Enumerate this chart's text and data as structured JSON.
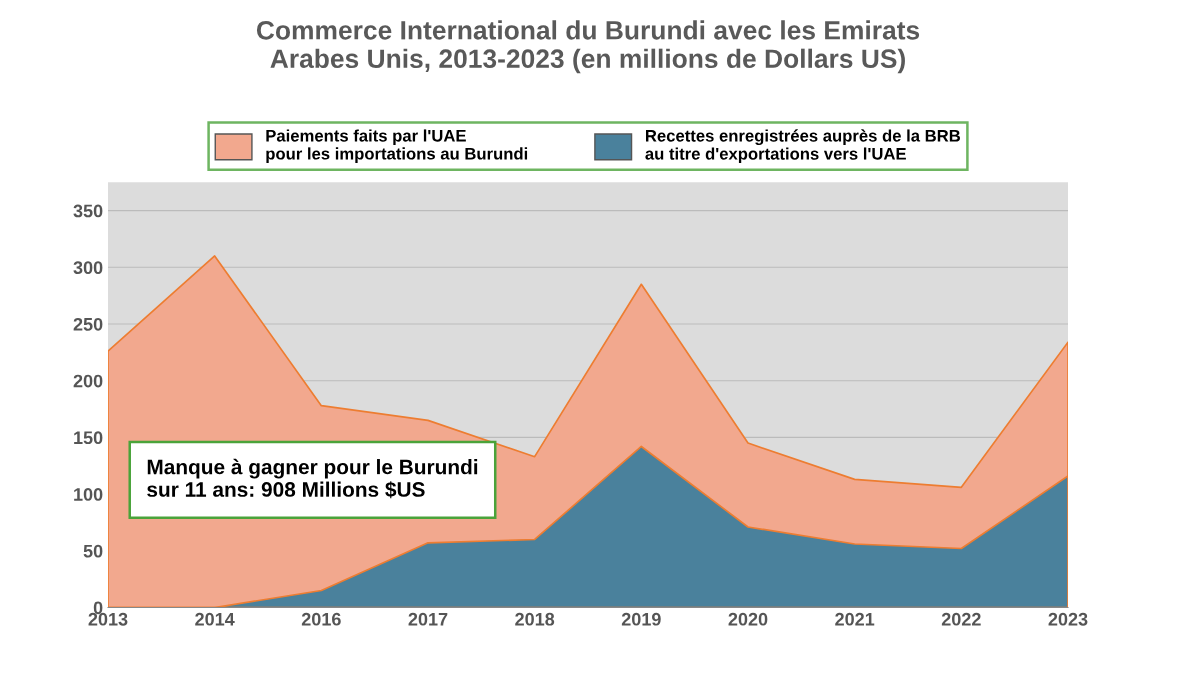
{
  "chart_data": {
    "type": "area",
    "title": "Commerce International du Burundi avec les Emirats\nArabes Unis, 2013-2023 (en millions de Dollars US)",
    "categories": [
      "2013",
      "2014",
      "2016",
      "2017",
      "2018",
      "2019",
      "2020",
      "2021",
      "2022",
      "2023"
    ],
    "series": [
      {
        "name": "Paiements faits par l'UAE\npour les importations au Burundi",
        "color": "#f2a88e",
        "values": [
          226,
          310,
          178,
          165,
          133,
          285,
          145,
          113,
          106,
          234
        ]
      },
      {
        "name": "Recettes enregistrées auprès de la BRB\nau titre d'exportations vers l'UAE",
        "color": "#4a819c",
        "values": [
          0,
          0,
          15,
          57,
          60,
          142,
          71,
          56,
          52,
          116
        ]
      }
    ],
    "ylim": [
      0,
      375
    ],
    "yticks": [
      0,
      50,
      100,
      150,
      200,
      250,
      300,
      350
    ],
    "grid": "y",
    "legend": "top",
    "annotations": [
      "Manque à gagner pour le Burundi\nsur 11 ans: 908 Millions $US"
    ]
  }
}
